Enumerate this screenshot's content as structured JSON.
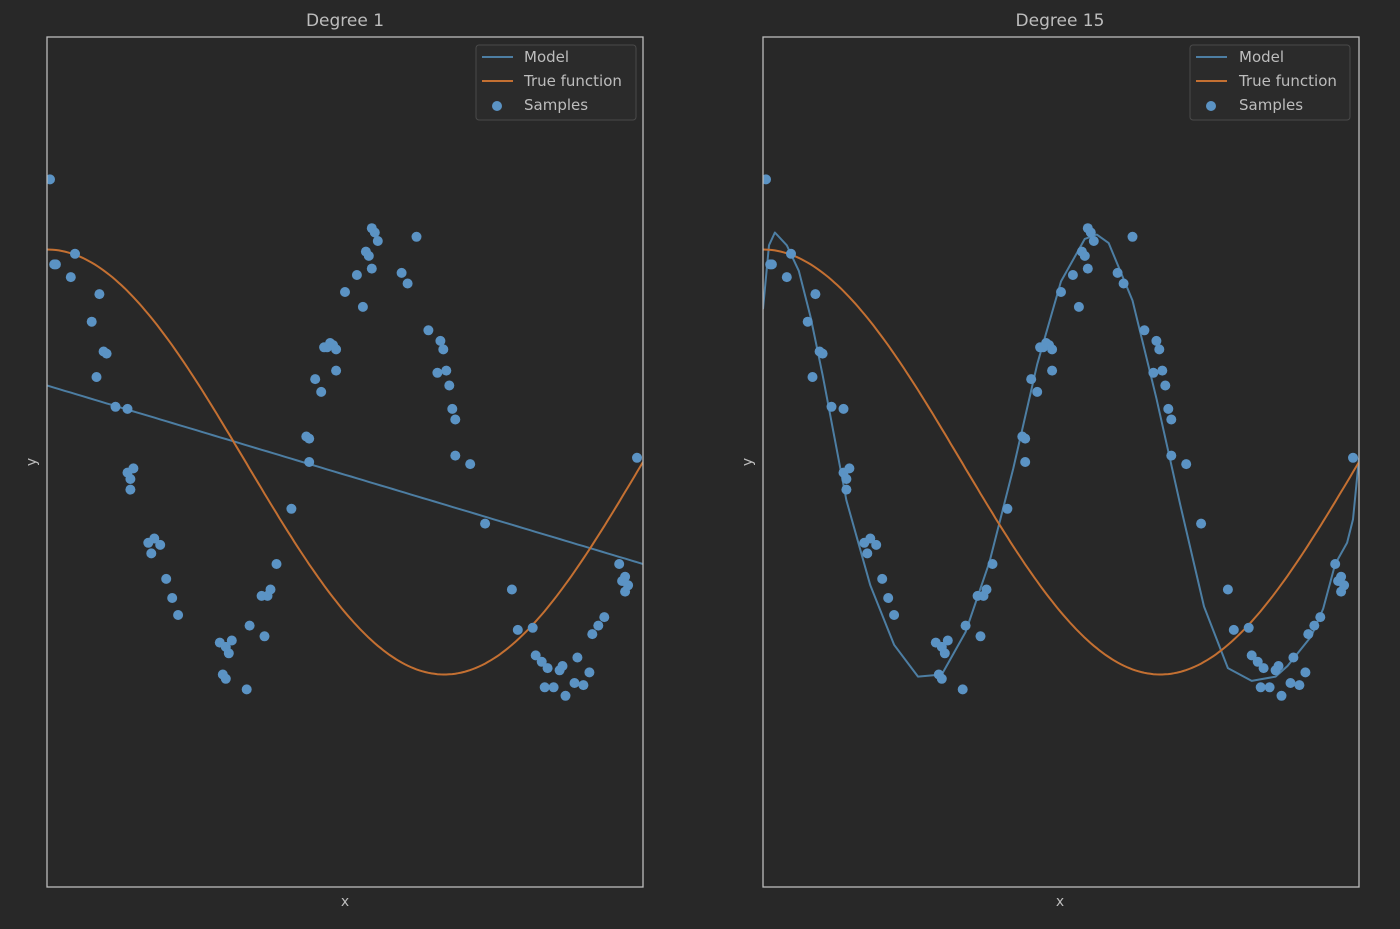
{
  "chart_data": [
    {
      "type": "scatter",
      "title": "Degree 1",
      "xlabel": "x",
      "ylabel": "y",
      "xlim": [
        0,
        1
      ],
      "ylim": [
        -2,
        2
      ],
      "legend": {
        "placement": "top-right",
        "entries": [
          "Model",
          "True function",
          "Samples"
        ]
      },
      "true_function": "cos(1.5*pi*x)",
      "model": {
        "type": "polynomial",
        "degree": 1,
        "coefficients": [
          0.36,
          -0.84
        ]
      },
      "samples": [
        [
          0.005,
          1.33
        ],
        [
          0.012,
          0.93
        ],
        [
          0.015,
          0.93
        ],
        [
          0.04,
          0.87
        ],
        [
          0.047,
          0.98
        ],
        [
          0.075,
          0.66
        ],
        [
          0.083,
          0.4
        ],
        [
          0.088,
          0.79
        ],
        [
          0.095,
          0.52
        ],
        [
          0.1,
          0.51
        ],
        [
          0.115,
          0.26
        ],
        [
          0.135,
          0.25
        ],
        [
          0.135,
          -0.05
        ],
        [
          0.14,
          -0.08
        ],
        [
          0.14,
          -0.13
        ],
        [
          0.145,
          -0.03
        ],
        [
          0.17,
          -0.38
        ],
        [
          0.175,
          -0.43
        ],
        [
          0.18,
          -0.36
        ],
        [
          0.19,
          -0.39
        ],
        [
          0.2,
          -0.55
        ],
        [
          0.21,
          -0.64
        ],
        [
          0.22,
          -0.72
        ],
        [
          0.29,
          -0.85
        ],
        [
          0.295,
          -1.0
        ],
        [
          0.3,
          -1.02
        ],
        [
          0.3,
          -0.87
        ],
        [
          0.305,
          -0.9
        ],
        [
          0.31,
          -0.84
        ],
        [
          0.335,
          -1.07
        ],
        [
          0.34,
          -0.77
        ],
        [
          0.36,
          -0.63
        ],
        [
          0.365,
          -0.82
        ],
        [
          0.37,
          -0.63
        ],
        [
          0.375,
          -0.6
        ],
        [
          0.385,
          -0.48
        ],
        [
          0.41,
          -0.22
        ],
        [
          0.435,
          0.12
        ],
        [
          0.44,
          0.11
        ],
        [
          0.44,
          0.0
        ],
        [
          0.45,
          0.39
        ],
        [
          0.46,
          0.33
        ],
        [
          0.465,
          0.54
        ],
        [
          0.47,
          0.54
        ],
        [
          0.475,
          0.56
        ],
        [
          0.48,
          0.55
        ],
        [
          0.485,
          0.53
        ],
        [
          0.485,
          0.43
        ],
        [
          0.5,
          0.8
        ],
        [
          0.52,
          0.88
        ],
        [
          0.53,
          0.73
        ],
        [
          0.535,
          0.99
        ],
        [
          0.545,
          1.1
        ],
        [
          0.54,
          0.97
        ],
        [
          0.545,
          0.91
        ],
        [
          0.55,
          1.08
        ],
        [
          0.555,
          1.04
        ],
        [
          0.595,
          0.89
        ],
        [
          0.605,
          0.84
        ],
        [
          0.62,
          1.06
        ],
        [
          0.64,
          0.62
        ],
        [
          0.655,
          0.42
        ],
        [
          0.66,
          0.57
        ],
        [
          0.665,
          0.53
        ],
        [
          0.67,
          0.43
        ],
        [
          0.675,
          0.36
        ],
        [
          0.68,
          0.25
        ],
        [
          0.685,
          0.2
        ],
        [
          0.685,
          0.03
        ],
        [
          0.71,
          -0.01
        ],
        [
          0.735,
          -0.29
        ],
        [
          0.78,
          -0.6
        ],
        [
          0.79,
          -0.79
        ],
        [
          0.815,
          -0.78
        ],
        [
          0.82,
          -0.91
        ],
        [
          0.83,
          -0.94
        ],
        [
          0.835,
          -1.06
        ],
        [
          0.84,
          -0.97
        ],
        [
          0.85,
          -1.06
        ],
        [
          0.86,
          -0.98
        ],
        [
          0.865,
          -0.96
        ],
        [
          0.87,
          -1.1
        ],
        [
          0.885,
          -1.04
        ],
        [
          0.89,
          -0.92
        ],
        [
          0.9,
          -1.05
        ],
        [
          0.91,
          -0.99
        ],
        [
          0.915,
          -0.81
        ],
        [
          0.925,
          -0.77
        ],
        [
          0.935,
          -0.73
        ],
        [
          0.96,
          -0.48
        ],
        [
          0.965,
          -0.56
        ],
        [
          0.97,
          -0.54
        ],
        [
          0.97,
          -0.61
        ],
        [
          0.975,
          -0.58
        ],
        [
          0.99,
          0.02
        ]
      ]
    },
    {
      "type": "scatter",
      "title": "Degree 15",
      "xlabel": "x",
      "ylabel": "y",
      "xlim": [
        0,
        1
      ],
      "ylim": [
        -2,
        2
      ],
      "legend": {
        "placement": "top-right",
        "entries": [
          "Model",
          "True function",
          "Samples"
        ]
      },
      "true_function": "cos(1.5*pi*x)",
      "model": {
        "type": "curve",
        "x": [
          0.0,
          0.01,
          0.02,
          0.04,
          0.06,
          0.08,
          0.1,
          0.14,
          0.18,
          0.22,
          0.26,
          0.3,
          0.34,
          0.38,
          0.42,
          0.46,
          0.5,
          0.54,
          0.56,
          0.58,
          0.62,
          0.66,
          0.7,
          0.74,
          0.78,
          0.82,
          0.86,
          0.88,
          0.92,
          0.94,
          0.96,
          0.98,
          0.99,
          1.0
        ],
        "y": [
          0.72,
          1.02,
          1.08,
          1.02,
          0.9,
          0.68,
          0.41,
          -0.18,
          -0.58,
          -0.86,
          -1.01,
          -1.0,
          -0.8,
          -0.47,
          -0.03,
          0.46,
          0.85,
          1.05,
          1.07,
          1.03,
          0.76,
          0.3,
          -0.2,
          -0.68,
          -0.97,
          -1.03,
          -1.01,
          -0.96,
          -0.82,
          -0.69,
          -0.48,
          -0.38,
          -0.27,
          0.02
        ]
      },
      "samples": [
        [
          0.005,
          1.33
        ],
        [
          0.012,
          0.93
        ],
        [
          0.015,
          0.93
        ],
        [
          0.04,
          0.87
        ],
        [
          0.047,
          0.98
        ],
        [
          0.075,
          0.66
        ],
        [
          0.083,
          0.4
        ],
        [
          0.088,
          0.79
        ],
        [
          0.095,
          0.52
        ],
        [
          0.1,
          0.51
        ],
        [
          0.115,
          0.26
        ],
        [
          0.135,
          0.25
        ],
        [
          0.135,
          -0.05
        ],
        [
          0.14,
          -0.08
        ],
        [
          0.14,
          -0.13
        ],
        [
          0.145,
          -0.03
        ],
        [
          0.17,
          -0.38
        ],
        [
          0.175,
          -0.43
        ],
        [
          0.18,
          -0.36
        ],
        [
          0.19,
          -0.39
        ],
        [
          0.2,
          -0.55
        ],
        [
          0.21,
          -0.64
        ],
        [
          0.22,
          -0.72
        ],
        [
          0.29,
          -0.85
        ],
        [
          0.295,
          -1.0
        ],
        [
          0.3,
          -1.02
        ],
        [
          0.3,
          -0.87
        ],
        [
          0.305,
          -0.9
        ],
        [
          0.31,
          -0.84
        ],
        [
          0.335,
          -1.07
        ],
        [
          0.34,
          -0.77
        ],
        [
          0.36,
          -0.63
        ],
        [
          0.365,
          -0.82
        ],
        [
          0.37,
          -0.63
        ],
        [
          0.375,
          -0.6
        ],
        [
          0.385,
          -0.48
        ],
        [
          0.41,
          -0.22
        ],
        [
          0.435,
          0.12
        ],
        [
          0.44,
          0.11
        ],
        [
          0.44,
          0.0
        ],
        [
          0.45,
          0.39
        ],
        [
          0.46,
          0.33
        ],
        [
          0.465,
          0.54
        ],
        [
          0.47,
          0.54
        ],
        [
          0.475,
          0.56
        ],
        [
          0.48,
          0.55
        ],
        [
          0.485,
          0.53
        ],
        [
          0.485,
          0.43
        ],
        [
          0.5,
          0.8
        ],
        [
          0.52,
          0.88
        ],
        [
          0.53,
          0.73
        ],
        [
          0.535,
          0.99
        ],
        [
          0.545,
          1.1
        ],
        [
          0.54,
          0.97
        ],
        [
          0.545,
          0.91
        ],
        [
          0.55,
          1.08
        ],
        [
          0.555,
          1.04
        ],
        [
          0.595,
          0.89
        ],
        [
          0.605,
          0.84
        ],
        [
          0.62,
          1.06
        ],
        [
          0.64,
          0.62
        ],
        [
          0.655,
          0.42
        ],
        [
          0.66,
          0.57
        ],
        [
          0.665,
          0.53
        ],
        [
          0.67,
          0.43
        ],
        [
          0.675,
          0.36
        ],
        [
          0.68,
          0.25
        ],
        [
          0.685,
          0.2
        ],
        [
          0.685,
          0.03
        ],
        [
          0.71,
          -0.01
        ],
        [
          0.735,
          -0.29
        ],
        [
          0.78,
          -0.6
        ],
        [
          0.79,
          -0.79
        ],
        [
          0.815,
          -0.78
        ],
        [
          0.82,
          -0.91
        ],
        [
          0.83,
          -0.94
        ],
        [
          0.835,
          -1.06
        ],
        [
          0.84,
          -0.97
        ],
        [
          0.85,
          -1.06
        ],
        [
          0.86,
          -0.98
        ],
        [
          0.865,
          -0.96
        ],
        [
          0.87,
          -1.1
        ],
        [
          0.885,
          -1.04
        ],
        [
          0.89,
          -0.92
        ],
        [
          0.9,
          -1.05
        ],
        [
          0.91,
          -0.99
        ],
        [
          0.915,
          -0.81
        ],
        [
          0.925,
          -0.77
        ],
        [
          0.935,
          -0.73
        ],
        [
          0.96,
          -0.48
        ],
        [
          0.965,
          -0.56
        ],
        [
          0.97,
          -0.54
        ],
        [
          0.97,
          -0.61
        ],
        [
          0.975,
          -0.58
        ],
        [
          0.99,
          0.02
        ]
      ]
    }
  ],
  "colors": {
    "model": "#4d7ea3",
    "true_function": "#c47032",
    "samples": "#5b93c4",
    "frame": "#bdbdbd",
    "text": "#bdbdbd",
    "background": "#282828"
  }
}
